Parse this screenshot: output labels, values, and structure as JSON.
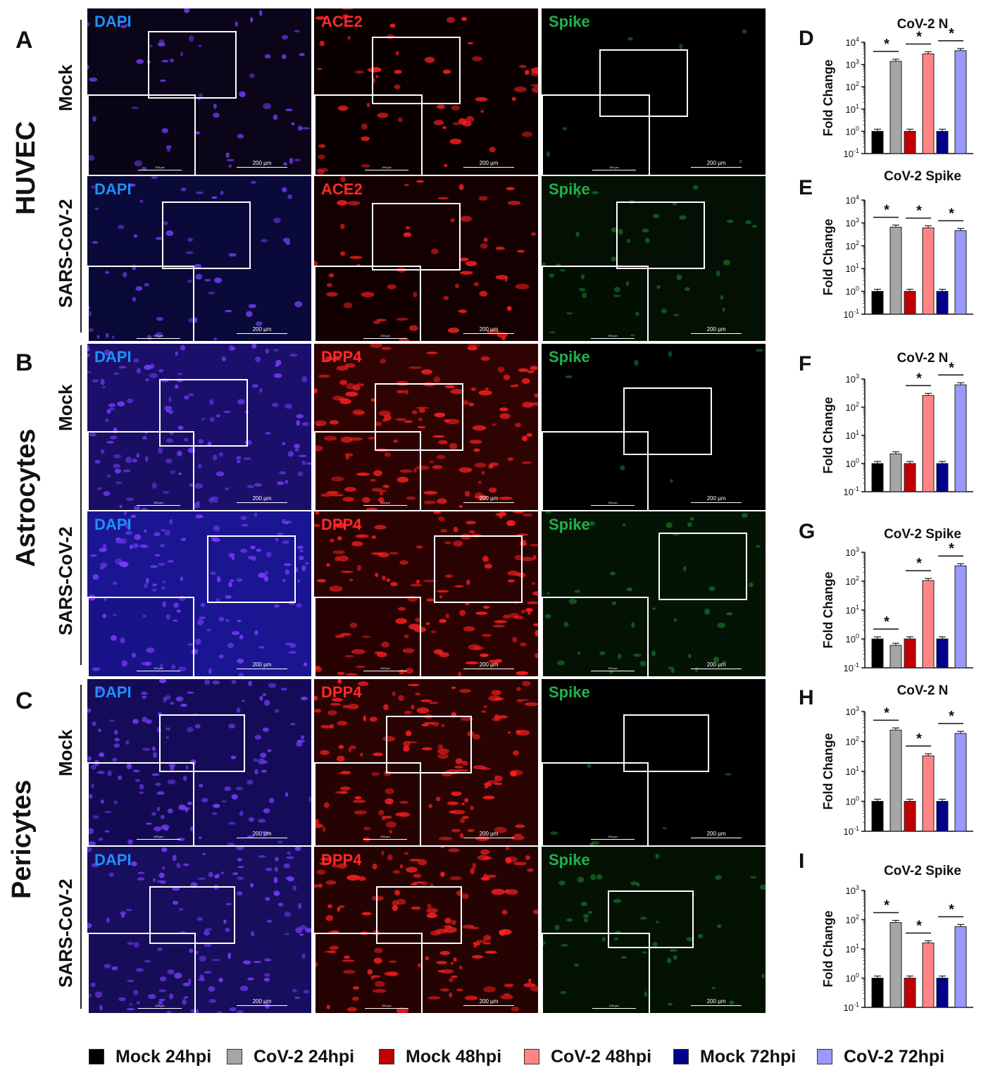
{
  "panel_letters": {
    "A": "A",
    "B": "B",
    "C": "C",
    "D": "D",
    "E": "E",
    "F": "F",
    "G": "G",
    "H": "H",
    "I": "I"
  },
  "cell_types": [
    "HUVEC",
    "Astrocytes",
    "Pericytes"
  ],
  "conditions": [
    "Mock",
    "SARS-CoV-2"
  ],
  "channels": {
    "dapi": "DAPI",
    "ace2": "ACE2",
    "dpp4": "DPP4",
    "spike": "Spike"
  },
  "scale_bar": "200 µm",
  "colors": {
    "dapi_text": "#1e90ff",
    "ace2_text": "#ff2a2a",
    "dpp4_text": "#ff2a2a",
    "spike_text": "#1fb24a"
  },
  "legend": [
    {
      "label": "Mock 24hpi",
      "color": "#000000"
    },
    {
      "label": "CoV-2 24hpi",
      "color": "#a6a6a6"
    },
    {
      "label": "Mock 48hpi",
      "color": "#c00000"
    },
    {
      "label": "CoV-2 48hpi",
      "color": "#ff8585"
    },
    {
      "label": "Mock 72hpi",
      "color": "#00008b"
    },
    {
      "label": "CoV-2 72hpi",
      "color": "#9999ff"
    }
  ],
  "chart_data": [
    {
      "type": "bar",
      "panel": "D",
      "title": "CoV-2 N",
      "ylabel": "Fold Change",
      "yscale": "log",
      "ylim_exp": [
        -1,
        4
      ],
      "categories": [
        "Mock 24hpi",
        "CoV-2 24hpi",
        "Mock 48hpi",
        "CoV-2 48hpi",
        "Mock 72hpi",
        "CoV-2 72hpi"
      ],
      "values": [
        1,
        1400,
        1,
        3000,
        1,
        4200
      ],
      "significance": [
        "*",
        "*",
        "*"
      ]
    },
    {
      "type": "bar",
      "panel": "E",
      "title": "CoV-2 Spike",
      "ylabel": "Fold Change",
      "yscale": "log",
      "ylim_exp": [
        -1,
        4
      ],
      "categories": [
        "Mock 24hpi",
        "CoV-2 24hpi",
        "Mock 48hpi",
        "CoV-2 48hpi",
        "Mock 72hpi",
        "CoV-2 72hpi"
      ],
      "values": [
        1,
        650,
        1,
        600,
        1,
        460
      ],
      "significance": [
        "*",
        "*",
        "*"
      ]
    },
    {
      "type": "bar",
      "panel": "F",
      "title": "CoV-2 N",
      "ylabel": "Fold Change",
      "yscale": "log",
      "ylim_exp": [
        -1,
        3
      ],
      "categories": [
        "Mock 24hpi",
        "CoV-2 24hpi",
        "Mock 48hpi",
        "CoV-2 48hpi",
        "Mock 72hpi",
        "CoV-2 72hpi"
      ],
      "values": [
        1,
        2.2,
        1,
        260,
        1,
        620
      ],
      "significance": [
        "*",
        "*"
      ]
    },
    {
      "type": "bar",
      "panel": "G",
      "title": "CoV-2 Spike",
      "ylabel": "Fold Change",
      "yscale": "log",
      "ylim_exp": [
        -1,
        3
      ],
      "categories": [
        "Mock 24hpi",
        "CoV-2 24hpi",
        "Mock 48hpi",
        "CoV-2 48hpi",
        "Mock 72hpi",
        "CoV-2 72hpi"
      ],
      "values": [
        1,
        0.6,
        1,
        105,
        1,
        340
      ],
      "significance": [
        "*",
        "*",
        "*"
      ]
    },
    {
      "type": "bar",
      "panel": "H",
      "title": "CoV-2 N",
      "ylabel": "Fold Change",
      "yscale": "log",
      "ylim_exp": [
        -1,
        3
      ],
      "categories": [
        "Mock 24hpi",
        "CoV-2 24hpi",
        "Mock 48hpi",
        "CoV-2 48hpi",
        "Mock 72hpi",
        "CoV-2 72hpi"
      ],
      "values": [
        1,
        240,
        1,
        33,
        1,
        185
      ],
      "significance": [
        "*",
        "*",
        "*"
      ]
    },
    {
      "type": "bar",
      "panel": "I",
      "title": "CoV-2 Spike",
      "ylabel": "Fold Change",
      "yscale": "log",
      "ylim_exp": [
        -1,
        3
      ],
      "categories": [
        "Mock 24hpi",
        "CoV-2 24hpi",
        "Mock 48hpi",
        "CoV-2 48hpi",
        "Mock 72hpi",
        "CoV-2 72hpi"
      ],
      "values": [
        1,
        80,
        1,
        16,
        1,
        58
      ],
      "significance": [
        "*",
        "*",
        "*"
      ]
    }
  ]
}
